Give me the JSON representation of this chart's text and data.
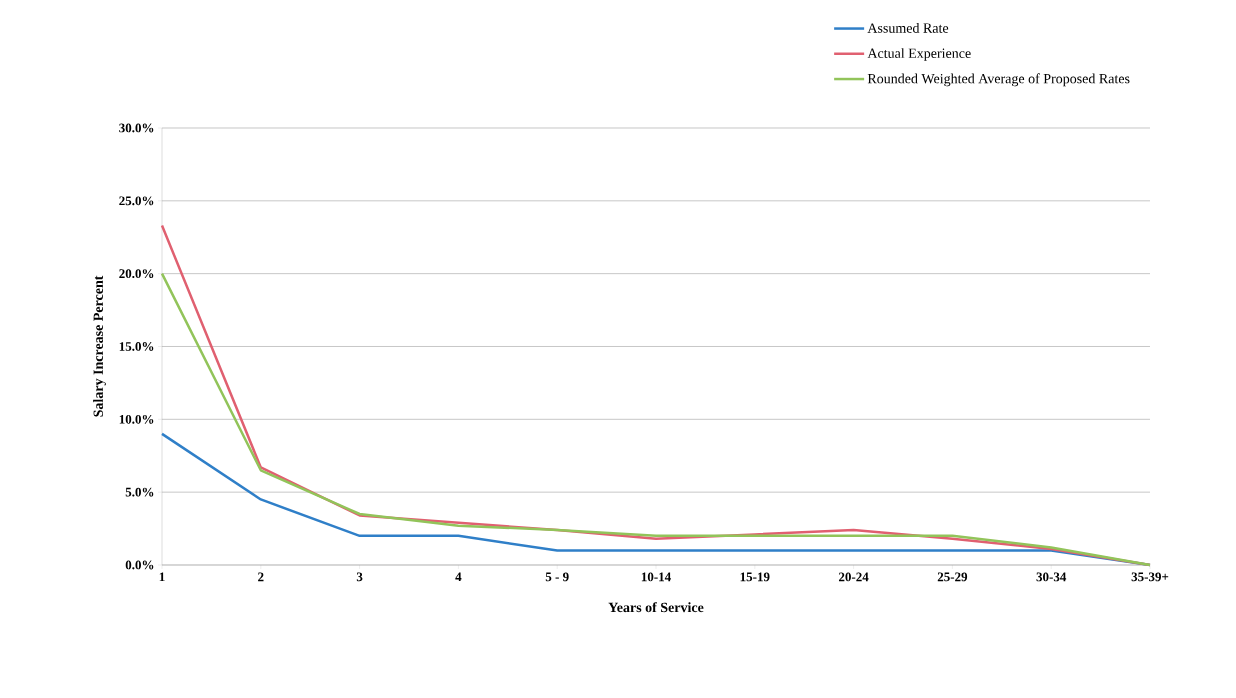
{
  "chart_data": {
    "type": "line",
    "xlabel": "Years of Service",
    "ylabel": "Salary Increase Percent",
    "categories": [
      "1",
      "2",
      "3",
      "4",
      "5 - 9",
      "10-14",
      "15-19",
      "20-24",
      "25-29",
      "30-34",
      "35-39+"
    ],
    "series": [
      {
        "name": "Assumed Rate",
        "color": "#2f7fc8",
        "values": [
          9.0,
          4.5,
          2.0,
          2.0,
          1.0,
          1.0,
          1.0,
          1.0,
          1.0,
          1.0,
          0.0
        ]
      },
      {
        "name": "Actual Experience",
        "color": "#e06070",
        "values": [
          23.3,
          6.7,
          3.4,
          null,
          2.4,
          1.8,
          2.1,
          2.4,
          1.8,
          1.1,
          0.0
        ]
      },
      {
        "name": "Rounded Weighted Average of Proposed Rates",
        "color": "#92c45a",
        "values": [
          20.0,
          6.5,
          3.5,
          2.7,
          2.4,
          2.0,
          2.0,
          2.0,
          2.0,
          1.2,
          0.0
        ]
      }
    ],
    "ylim": [
      0,
      30
    ],
    "yticks": [
      {
        "value": 0,
        "label": "0.0%"
      },
      {
        "value": 5,
        "label": "5.0%"
      },
      {
        "value": 10,
        "label": "10.0%"
      },
      {
        "value": 15,
        "label": "15.0%"
      },
      {
        "value": 20,
        "label": "20.0%"
      },
      {
        "value": 25,
        "label": "25.0%"
      },
      {
        "value": 30,
        "label": "30.0%"
      }
    ],
    "grid": "y",
    "legend": "top right",
    "marker": "none",
    "line_style": "solid"
  }
}
